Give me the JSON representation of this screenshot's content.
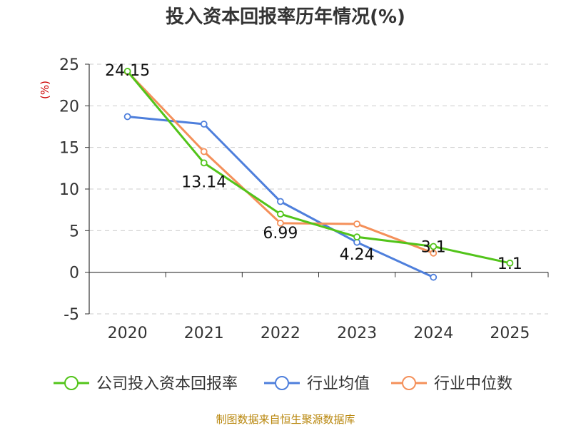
{
  "chart_data": {
    "type": "line",
    "title": "投入资本回报率历年情况(%)",
    "ylabel": "(%)",
    "categories": [
      "2020",
      "2021",
      "2022",
      "2023",
      "2024",
      "2025"
    ],
    "ylim": [
      -5,
      25
    ],
    "yticks": [
      25,
      20,
      15,
      10,
      5,
      0,
      -5
    ],
    "grid": true,
    "legend_position": "bottom",
    "series": [
      {
        "name": "公司投入资本回报率",
        "color": "#52c41a",
        "values": [
          24.15,
          13.14,
          6.99,
          4.24,
          3.1,
          1.1
        ],
        "labels": [
          "24.15",
          "13.14",
          "6.99",
          "4.24",
          "3.1",
          "1.1"
        ]
      },
      {
        "name": "行业均值",
        "color": "#4e7fdc",
        "values": [
          18.7,
          17.8,
          8.5,
          3.6,
          -0.6,
          null
        ]
      },
      {
        "name": "行业中位数",
        "color": "#f4905a",
        "values": [
          24.1,
          14.5,
          5.9,
          5.8,
          2.3,
          null
        ]
      }
    ]
  },
  "source": "制图数据来自恒生聚源数据库"
}
